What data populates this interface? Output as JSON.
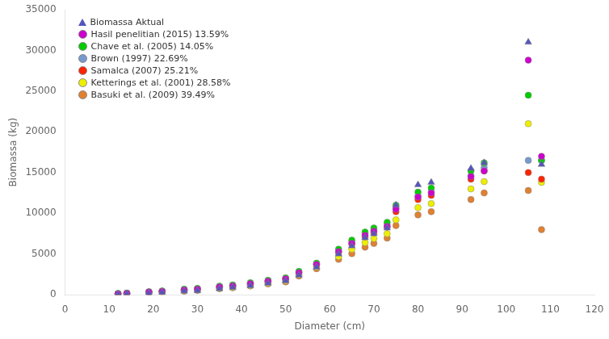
{
  "chart_data": {
    "type": "scatter",
    "xlabel": "Diameter (cm)",
    "ylabel": "Biomassa (kg)",
    "xlim": [
      0,
      120
    ],
    "ylim": [
      0,
      35000
    ],
    "xticks": [
      0,
      10,
      20,
      30,
      40,
      50,
      60,
      70,
      80,
      90,
      100,
      110,
      120
    ],
    "yticks": [
      0,
      5000,
      10000,
      15000,
      20000,
      25000,
      30000,
      35000
    ],
    "grid": false,
    "legend": "upper left",
    "x": [
      12,
      14,
      19,
      22,
      27,
      30,
      35,
      38,
      42,
      46,
      50,
      53,
      57,
      62,
      65,
      68,
      70,
      73,
      75,
      80,
      83,
      92,
      95,
      105,
      108
    ],
    "series": [
      {
        "name": "Biomassa Aktual",
        "color": "#5555bb",
        "marker": "triangle",
        "values": [
          50,
          100,
          200,
          300,
          450,
          500,
          750,
          900,
          1100,
          1400,
          1700,
          2400,
          3400,
          5000,
          6000,
          7000,
          7500,
          8200,
          11000,
          13500,
          13800,
          15500,
          16200,
          31000,
          16000
        ]
      },
      {
        "name": "Hasil penelitian (2015) 13.59%",
        "color": "#cc00cc",
        "marker": "circle",
        "values": [
          130,
          180,
          330,
          420,
          600,
          700,
          950,
          1080,
          1350,
          1650,
          1950,
          2700,
          3700,
          5300,
          6300,
          7300,
          7800,
          8400,
          10500,
          12000,
          12500,
          14500,
          15200,
          28800,
          17000
        ]
      },
      {
        "name": "Chave et al. (2005) 14.05%",
        "color": "#00cc00",
        "marker": "circle",
        "values": [
          160,
          210,
          370,
          460,
          680,
          780,
          1050,
          1200,
          1470,
          1780,
          2080,
          2880,
          3880,
          5600,
          6700,
          7700,
          8200,
          8900,
          11000,
          12600,
          13100,
          15200,
          16200,
          24500,
          16500
        ]
      },
      {
        "name": "Brown (1997) 22.69%",
        "color": "#7799cc",
        "marker": "circle",
        "values": [
          140,
          190,
          350,
          440,
          640,
          740,
          1000,
          1140,
          1400,
          1700,
          2000,
          2790,
          3790,
          5400,
          6450,
          7450,
          7950,
          8650,
          10600,
          12100,
          12600,
          14600,
          15600,
          16500,
          16500
        ]
      },
      {
        "name": "Samalca (2007) 25.21%",
        "color": "#ff2200",
        "marker": "circle",
        "values": [
          120,
          170,
          330,
          420,
          610,
          710,
          960,
          1090,
          1350,
          1640,
          1940,
          2720,
          3710,
          5200,
          6200,
          7100,
          7600,
          8300,
          10200,
          11700,
          12200,
          14200,
          15200,
          15000,
          14200
        ]
      },
      {
        "name": "Ketterings et al. (2001) 28.58%",
        "color": "#eeee00",
        "marker": "circle",
        "values": [
          100,
          140,
          270,
          340,
          490,
          580,
          820,
          940,
          1170,
          1440,
          1720,
          2480,
          3430,
          4700,
          5600,
          6400,
          6900,
          7500,
          9200,
          10700,
          11200,
          13000,
          13900,
          21000,
          13800
        ]
      },
      {
        "name": "Basuki et al. (2009) 39.49%",
        "color": "#e08030",
        "marker": "circle",
        "values": [
          90,
          130,
          240,
          310,
          450,
          530,
          750,
          860,
          1080,
          1330,
          1580,
          2300,
          3200,
          4350,
          5050,
          5850,
          6300,
          6950,
          8500,
          9800,
          10200,
          11700,
          12500,
          12800,
          8000
        ]
      }
    ]
  }
}
